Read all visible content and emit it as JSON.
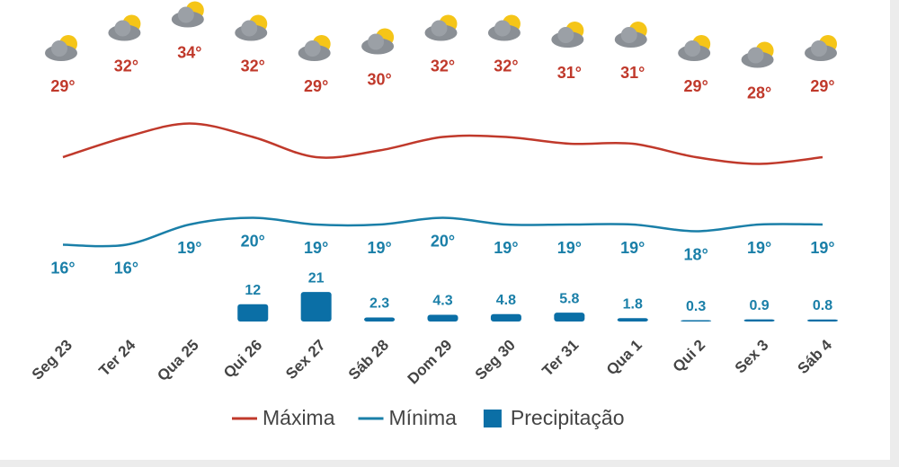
{
  "chart_data": {
    "type": "combo",
    "categories": [
      "Seg 23",
      "Ter 24",
      "Qua 25",
      "Qui 26",
      "Sex 27",
      "Sáb 28",
      "Dom 29",
      "Seg 30",
      "Ter 31",
      "Qua 1",
      "Qui 2",
      "Sex 3",
      "Sáb 4"
    ],
    "series": [
      {
        "name": "Máxima",
        "type": "line",
        "color": "#c0392b",
        "values": [
          29,
          32,
          34,
          32,
          29,
          30,
          32,
          32,
          31,
          31,
          29,
          28,
          29
        ],
        "value_labels": [
          "29°",
          "32°",
          "34°",
          "32°",
          "29°",
          "30°",
          "32°",
          "32°",
          "31°",
          "31°",
          "29°",
          "28°",
          "29°"
        ]
      },
      {
        "name": "Mínima",
        "type": "line",
        "color": "#1a7fa8",
        "values": [
          16,
          16,
          19,
          20,
          19,
          19,
          20,
          19,
          19,
          19,
          18,
          19,
          19
        ],
        "value_labels": [
          "16°",
          "16°",
          "19°",
          "20°",
          "19°",
          "19°",
          "20°",
          "19°",
          "19°",
          "19°",
          "18°",
          "19°",
          "19°"
        ]
      },
      {
        "name": "Precipitação",
        "type": "bar",
        "color": "#0b6fa6",
        "values": [
          null,
          null,
          null,
          12,
          21,
          2.3,
          4.3,
          4.8,
          5.8,
          1.8,
          0.3,
          0.9,
          0.8
        ]
      }
    ]
  }
}
